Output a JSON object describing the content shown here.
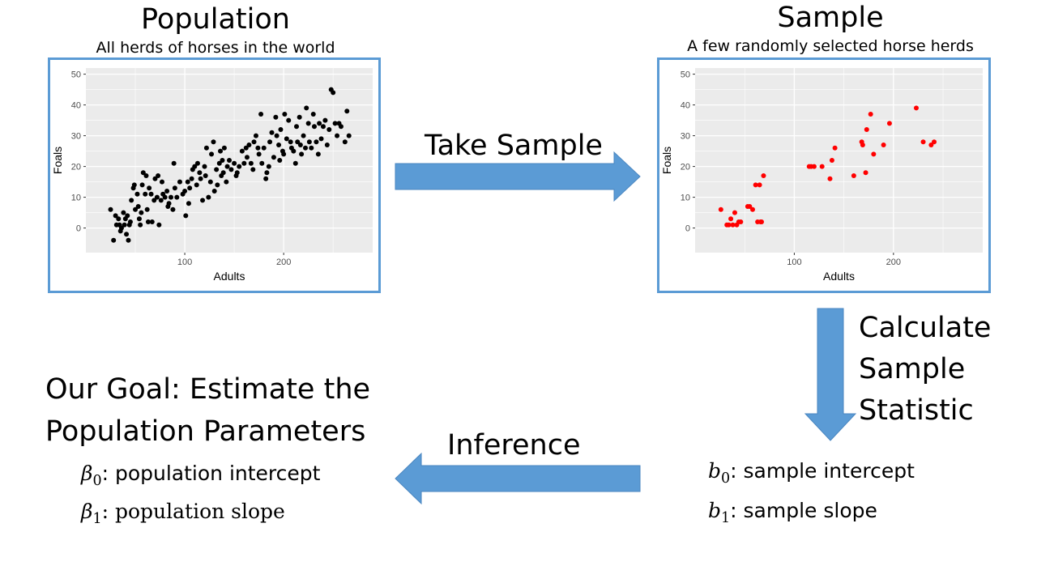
{
  "population": {
    "title": "Population",
    "subtitle": "All herds of horses in the world",
    "chart_data": {
      "type": "scatter",
      "xlabel": "Adults",
      "ylabel": "Foals",
      "xlim": [
        0,
        290
      ],
      "ylim": [
        -8,
        52
      ],
      "xticks": [
        100,
        200
      ],
      "yticks": [
        0,
        10,
        20,
        30,
        40,
        50
      ],
      "grid": true,
      "point_color": "#000000",
      "points": [
        [
          25,
          6
        ],
        [
          28,
          -4
        ],
        [
          30,
          4
        ],
        [
          31,
          1
        ],
        [
          33,
          3
        ],
        [
          34,
          1
        ],
        [
          35,
          -1
        ],
        [
          36,
          0
        ],
        [
          38,
          5
        ],
        [
          39,
          1
        ],
        [
          40,
          3
        ],
        [
          41,
          -2
        ],
        [
          42,
          4
        ],
        [
          43,
          -4
        ],
        [
          44,
          1
        ],
        [
          45,
          2
        ],
        [
          46,
          9
        ],
        [
          48,
          13
        ],
        [
          49,
          14
        ],
        [
          50,
          6
        ],
        [
          52,
          11
        ],
        [
          53,
          7
        ],
        [
          54,
          3
        ],
        [
          55,
          1
        ],
        [
          56,
          5
        ],
        [
          57,
          14
        ],
        [
          58,
          18
        ],
        [
          60,
          11
        ],
        [
          61,
          17
        ],
        [
          62,
          6
        ],
        [
          63,
          2
        ],
        [
          64,
          13
        ],
        [
          66,
          11
        ],
        [
          67,
          2
        ],
        [
          69,
          9
        ],
        [
          70,
          16
        ],
        [
          72,
          10
        ],
        [
          73,
          17
        ],
        [
          74,
          1
        ],
        [
          76,
          9
        ],
        [
          77,
          15
        ],
        [
          78,
          11
        ],
        [
          80,
          10
        ],
        [
          82,
          12
        ],
        [
          83,
          7
        ],
        [
          84,
          8
        ],
        [
          86,
          10
        ],
        [
          88,
          6
        ],
        [
          89,
          21
        ],
        [
          90,
          13
        ],
        [
          92,
          10
        ],
        [
          95,
          15
        ],
        [
          98,
          11
        ],
        [
          100,
          12
        ],
        [
          101,
          4
        ],
        [
          103,
          15
        ],
        [
          104,
          8
        ],
        [
          105,
          13
        ],
        [
          107,
          16
        ],
        [
          108,
          19
        ],
        [
          110,
          20
        ],
        [
          112,
          14
        ],
        [
          113,
          21
        ],
        [
          115,
          18
        ],
        [
          116,
          16
        ],
        [
          118,
          9
        ],
        [
          120,
          20
        ],
        [
          121,
          17
        ],
        [
          122,
          26
        ],
        [
          124,
          10
        ],
        [
          126,
          15
        ],
        [
          127,
          24
        ],
        [
          129,
          28
        ],
        [
          130,
          12
        ],
        [
          132,
          19
        ],
        [
          133,
          14
        ],
        [
          135,
          21
        ],
        [
          136,
          25
        ],
        [
          137,
          17
        ],
        [
          138,
          22
        ],
        [
          139,
          18
        ],
        [
          140,
          26
        ],
        [
          142,
          15
        ],
        [
          143,
          20
        ],
        [
          145,
          22
        ],
        [
          147,
          19
        ],
        [
          150,
          21
        ],
        [
          152,
          17
        ],
        [
          153,
          18
        ],
        [
          155,
          20
        ],
        [
          158,
          25
        ],
        [
          160,
          21
        ],
        [
          162,
          26
        ],
        [
          163,
          23
        ],
        [
          165,
          27
        ],
        [
          167,
          21
        ],
        [
          169,
          19
        ],
        [
          170,
          28
        ],
        [
          172,
          30
        ],
        [
          174,
          26
        ],
        [
          175,
          24
        ],
        [
          177,
          37
        ],
        [
          178,
          21
        ],
        [
          180,
          26
        ],
        [
          182,
          16
        ],
        [
          183,
          18
        ],
        [
          185,
          20
        ],
        [
          186,
          28
        ],
        [
          188,
          31
        ],
        [
          190,
          23
        ],
        [
          192,
          36
        ],
        [
          193,
          30
        ],
        [
          195,
          27
        ],
        [
          196,
          22
        ],
        [
          197,
          32
        ],
        [
          199,
          25
        ],
        [
          200,
          24
        ],
        [
          201,
          37
        ],
        [
          203,
          29
        ],
        [
          205,
          35
        ],
        [
          207,
          28
        ],
        [
          208,
          26
        ],
        [
          210,
          25
        ],
        [
          212,
          21
        ],
        [
          213,
          33
        ],
        [
          214,
          28
        ],
        [
          216,
          36
        ],
        [
          217,
          27
        ],
        [
          218,
          24
        ],
        [
          220,
          30
        ],
        [
          222,
          26
        ],
        [
          223,
          39
        ],
        [
          225,
          34
        ],
        [
          226,
          28
        ],
        [
          228,
          26
        ],
        [
          230,
          37
        ],
        [
          231,
          33
        ],
        [
          233,
          28
        ],
        [
          235,
          24
        ],
        [
          236,
          34
        ],
        [
          238,
          29
        ],
        [
          240,
          33
        ],
        [
          242,
          35
        ],
        [
          244,
          27
        ],
        [
          246,
          32
        ],
        [
          248,
          45
        ],
        [
          250,
          44
        ],
        [
          252,
          34
        ],
        [
          254,
          30
        ],
        [
          256,
          34
        ],
        [
          258,
          33
        ],
        [
          262,
          28
        ],
        [
          264,
          38
        ],
        [
          266,
          30
        ]
      ]
    }
  },
  "sample": {
    "title": "Sample",
    "subtitle": "A few randomly selected horse herds",
    "chart_data": {
      "type": "scatter",
      "xlabel": "Adults",
      "ylabel": "Foals",
      "xlim": [
        0,
        290
      ],
      "ylim": [
        -8,
        52
      ],
      "xticks": [
        100,
        200
      ],
      "yticks": [
        0,
        10,
        20,
        30,
        40,
        50
      ],
      "grid": true,
      "point_color": "#ff0000",
      "points": [
        [
          26,
          6
        ],
        [
          32,
          1
        ],
        [
          34,
          1
        ],
        [
          36,
          3
        ],
        [
          38,
          1
        ],
        [
          40,
          5
        ],
        [
          42,
          1
        ],
        [
          44,
          2
        ],
        [
          46,
          2
        ],
        [
          53,
          7
        ],
        [
          55,
          7
        ],
        [
          58,
          6
        ],
        [
          61,
          14
        ],
        [
          63,
          2
        ],
        [
          65,
          14
        ],
        [
          66,
          2
        ],
        [
          67,
          2
        ],
        [
          69,
          17
        ],
        [
          115,
          20
        ],
        [
          117,
          20
        ],
        [
          120,
          20
        ],
        [
          128,
          20
        ],
        [
          136,
          16
        ],
        [
          138,
          22
        ],
        [
          141,
          26
        ],
        [
          160,
          17
        ],
        [
          168,
          28
        ],
        [
          169,
          27
        ],
        [
          172,
          18
        ],
        [
          173,
          32
        ],
        [
          177,
          37
        ],
        [
          180,
          24
        ],
        [
          190,
          27
        ],
        [
          196,
          34
        ],
        [
          223,
          39
        ],
        [
          230,
          28
        ],
        [
          238,
          27
        ],
        [
          241,
          28
        ]
      ]
    }
  },
  "arrows": {
    "take_sample": "Take Sample",
    "calculate": [
      "Calculate",
      "Sample",
      "Statistic"
    ],
    "inference": "Inference"
  },
  "goal": {
    "lines": [
      "Our Goal: Estimate the",
      "Population Parameters"
    ],
    "params": [
      {
        "symbol": "β",
        "sub": "0",
        "text": ": population intercept"
      },
      {
        "symbol": "β",
        "sub": "1",
        "text": ": population slope"
      }
    ]
  },
  "sample_stats": [
    {
      "symbol": "b",
      "sub": "0",
      "text": ":  sample intercept"
    },
    {
      "symbol": "b",
      "sub": "1",
      "text": ":  sample slope"
    }
  ],
  "colors": {
    "arrow": "#5b9bd5",
    "panel_border": "#5b9bd5",
    "plot_bg": "#ebebeb",
    "grid": "#ffffff"
  }
}
